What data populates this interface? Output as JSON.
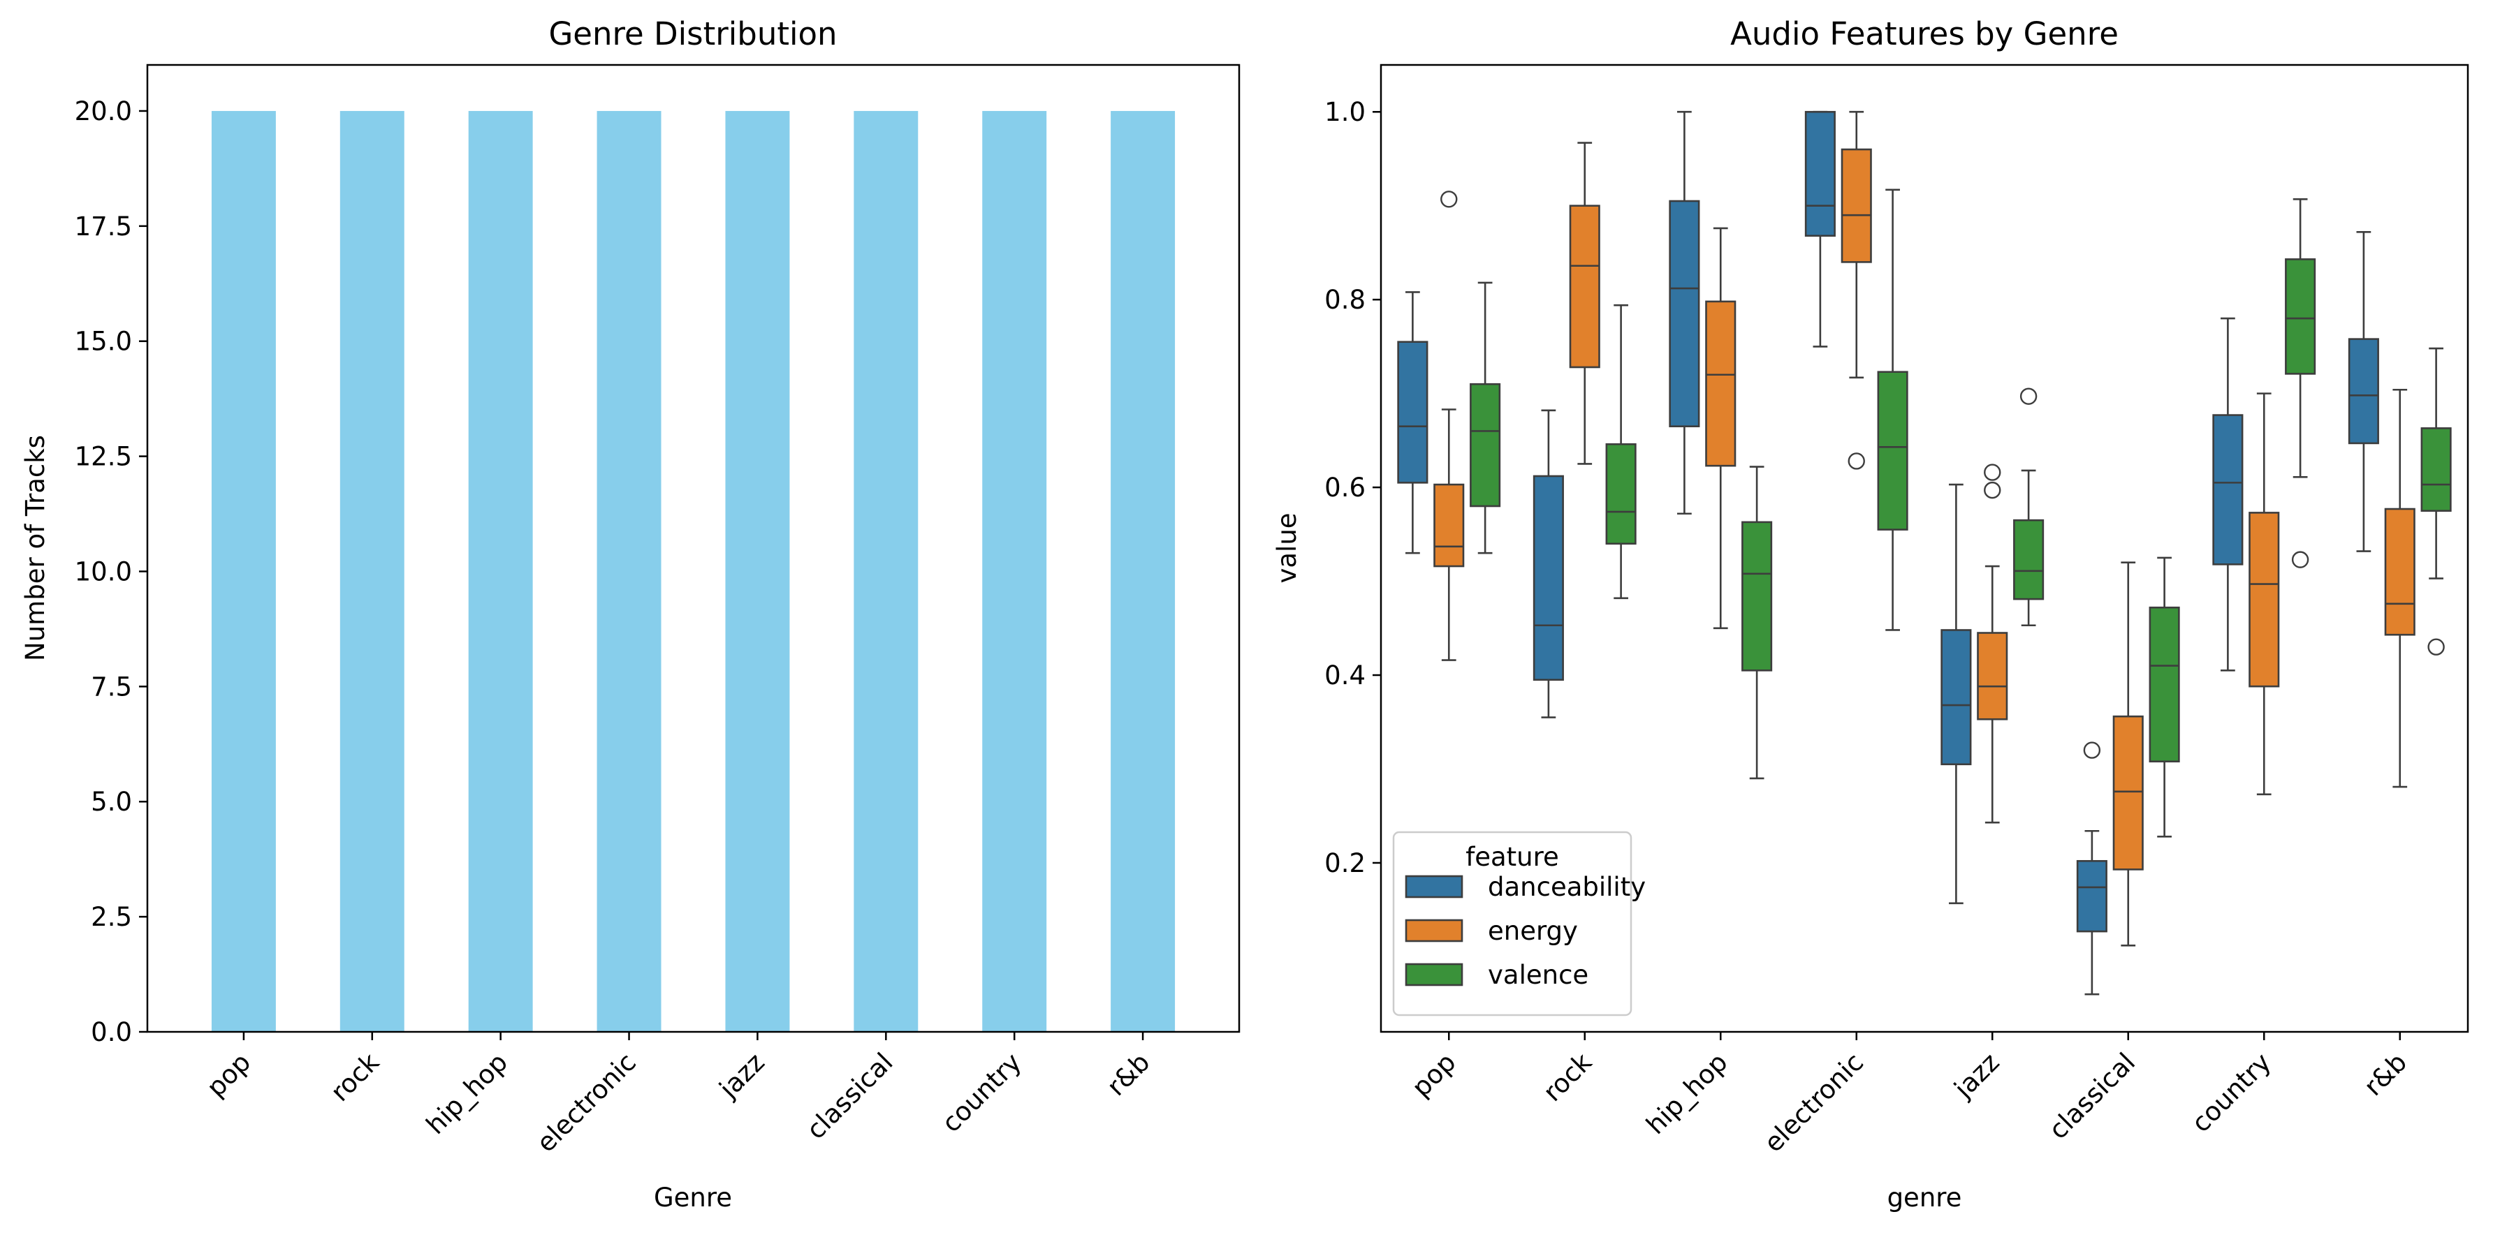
{
  "figure_colors": {
    "bar": "#87ceeb",
    "danceability": "#3274a1",
    "energy": "#e1812c",
    "valence": "#3a923a",
    "box_edge": "#3d3d3d"
  },
  "chart_data": [
    {
      "type": "bar",
      "title": "Genre Distribution",
      "xlabel": "Genre",
      "ylabel": "Number of Tracks",
      "ylim": [
        0,
        21
      ],
      "yticks": [
        "0.0",
        "2.5",
        "5.0",
        "7.5",
        "10.0",
        "12.5",
        "15.0",
        "17.5",
        "20.0"
      ],
      "categories": [
        "pop",
        "rock",
        "hip_hop",
        "electronic",
        "jazz",
        "classical",
        "country",
        "r&b"
      ],
      "values": [
        20,
        20,
        20,
        20,
        20,
        20,
        20,
        20
      ],
      "color": "#87ceeb",
      "grid": false
    },
    {
      "type": "box",
      "title": "Audio Features by Genre",
      "xlabel": "genre",
      "ylabel": "value",
      "ylim": [
        0.02,
        1.05
      ],
      "yticks": [
        "0.2",
        "0.4",
        "0.6",
        "0.8",
        "1.0"
      ],
      "categories": [
        "pop",
        "rock",
        "hip_hop",
        "electronic",
        "jazz",
        "classical",
        "country",
        "r&b"
      ],
      "legend": {
        "title": "feature",
        "placement": "lower-left"
      },
      "grid": false,
      "series": [
        {
          "name": "danceability",
          "color": "#3274a1",
          "boxes": [
            {
              "whislo": 0.53,
              "q1": 0.605,
              "med": 0.665,
              "q3": 0.755,
              "whishi": 0.808,
              "fliers": []
            },
            {
              "whislo": 0.355,
              "q1": 0.395,
              "med": 0.453,
              "q3": 0.612,
              "whishi": 0.682,
              "fliers": []
            },
            {
              "whislo": 0.572,
              "q1": 0.665,
              "med": 0.812,
              "q3": 0.905,
              "whishi": 1.0,
              "fliers": []
            },
            {
              "whislo": 0.75,
              "q1": 0.868,
              "med": 0.9,
              "q3": 1.0,
              "whishi": 1.0,
              "fliers": []
            },
            {
              "whislo": 0.157,
              "q1": 0.305,
              "med": 0.368,
              "q3": 0.448,
              "whishi": 0.603,
              "fliers": []
            },
            {
              "whislo": 0.06,
              "q1": 0.127,
              "med": 0.174,
              "q3": 0.202,
              "whishi": 0.234,
              "fliers": [
                0.32
              ]
            },
            {
              "whislo": 0.405,
              "q1": 0.518,
              "med": 0.605,
              "q3": 0.677,
              "whishi": 0.78,
              "fliers": []
            },
            {
              "whislo": 0.532,
              "q1": 0.647,
              "med": 0.698,
              "q3": 0.758,
              "whishi": 0.872,
              "fliers": []
            }
          ]
        },
        {
          "name": "energy",
          "color": "#e1812c",
          "boxes": [
            {
              "whislo": 0.416,
              "q1": 0.516,
              "med": 0.537,
              "q3": 0.603,
              "whishi": 0.683,
              "fliers": [
                0.907
              ]
            },
            {
              "whislo": 0.625,
              "q1": 0.728,
              "med": 0.836,
              "q3": 0.9,
              "whishi": 0.967,
              "fliers": []
            },
            {
              "whislo": 0.45,
              "q1": 0.623,
              "med": 0.72,
              "q3": 0.798,
              "whishi": 0.876,
              "fliers": []
            },
            {
              "whislo": 0.717,
              "q1": 0.84,
              "med": 0.89,
              "q3": 0.96,
              "whishi": 1.0,
              "fliers": [
                0.628
              ]
            },
            {
              "whislo": 0.243,
              "q1": 0.353,
              "med": 0.388,
              "q3": 0.445,
              "whishi": 0.516,
              "fliers": [
                0.597,
                0.616
              ]
            },
            {
              "whislo": 0.112,
              "q1": 0.193,
              "med": 0.276,
              "q3": 0.356,
              "whishi": 0.52,
              "fliers": []
            },
            {
              "whislo": 0.273,
              "q1": 0.388,
              "med": 0.497,
              "q3": 0.573,
              "whishi": 0.7,
              "fliers": []
            },
            {
              "whislo": 0.281,
              "q1": 0.443,
              "med": 0.476,
              "q3": 0.577,
              "whishi": 0.704,
              "fliers": []
            }
          ]
        },
        {
          "name": "valence",
          "color": "#3a923a",
          "boxes": [
            {
              "whislo": 0.53,
              "q1": 0.58,
              "med": 0.66,
              "q3": 0.71,
              "whishi": 0.818,
              "fliers": []
            },
            {
              "whislo": 0.482,
              "q1": 0.54,
              "med": 0.574,
              "q3": 0.646,
              "whishi": 0.794,
              "fliers": []
            },
            {
              "whislo": 0.29,
              "q1": 0.405,
              "med": 0.508,
              "q3": 0.563,
              "whishi": 0.622,
              "fliers": []
            },
            {
              "whislo": 0.448,
              "q1": 0.555,
              "med": 0.643,
              "q3": 0.723,
              "whishi": 0.917,
              "fliers": []
            },
            {
              "whislo": 0.453,
              "q1": 0.481,
              "med": 0.511,
              "q3": 0.565,
              "whishi": 0.618,
              "fliers": [
                0.697
              ]
            },
            {
              "whislo": 0.228,
              "q1": 0.308,
              "med": 0.41,
              "q3": 0.472,
              "whishi": 0.525,
              "fliers": []
            },
            {
              "whislo": 0.611,
              "q1": 0.721,
              "med": 0.78,
              "q3": 0.843,
              "whishi": 0.907,
              "fliers": [
                0.523
              ]
            },
            {
              "whislo": 0.503,
              "q1": 0.575,
              "med": 0.603,
              "q3": 0.663,
              "whishi": 0.748,
              "fliers": [
                0.43
              ]
            }
          ]
        }
      ]
    }
  ]
}
